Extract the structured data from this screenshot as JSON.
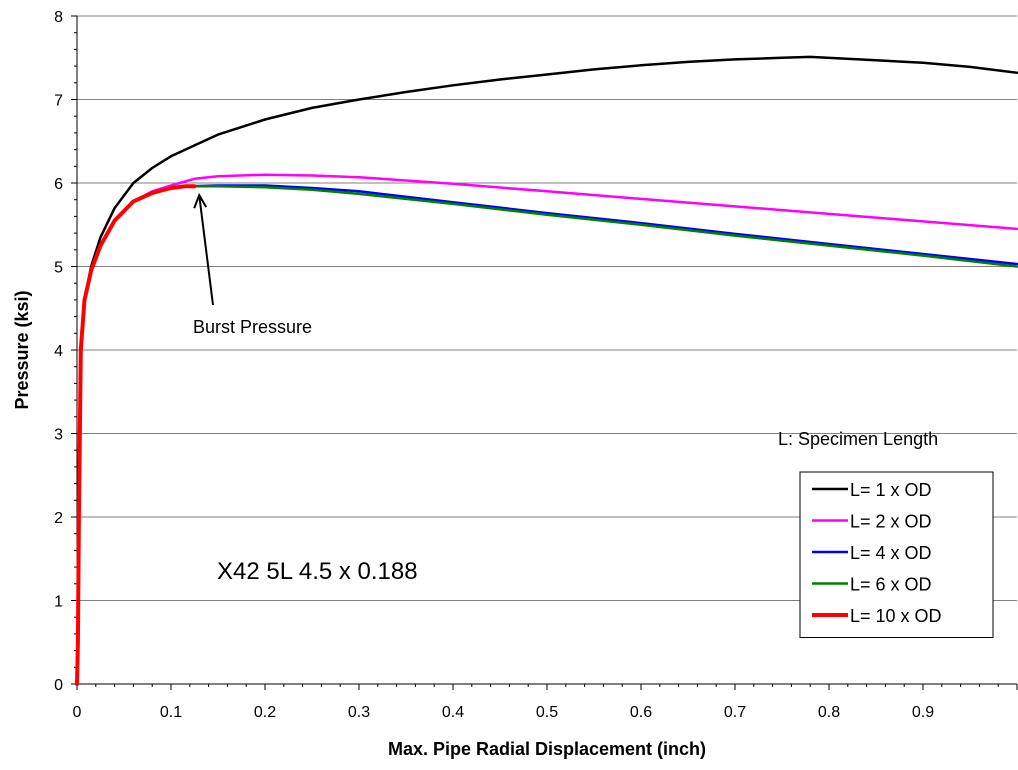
{
  "chart_data": {
    "type": "line",
    "xlabel": "Max. Pipe Radial Displacement (inch)",
    "ylabel": "Pressure (ksi)",
    "xlim": [
      0,
      1.0
    ],
    "ylim": [
      0,
      8
    ],
    "x_ticks": [
      "0",
      "0.1",
      "0.2",
      "0.3",
      "0.4",
      "0.5",
      "0.6",
      "0.7",
      "0.8",
      "0.9"
    ],
    "y_ticks": [
      "0",
      "1",
      "2",
      "3",
      "4",
      "5",
      "6",
      "7",
      "8"
    ],
    "grid": "horizontal",
    "legend_position": "bottom-right",
    "legend_title": "L: Specimen Length",
    "annotations": {
      "burst_pressure": {
        "text": "Burst Pressure",
        "points_to": [
          0.13,
          5.95
        ]
      },
      "specimen": {
        "text": "X42 5L 4.5 x 0.188"
      }
    },
    "series": [
      {
        "name": "L= 1 x OD",
        "color": "#000000",
        "x": [
          0,
          0.001,
          0.002,
          0.004,
          0.008,
          0.015,
          0.025,
          0.04,
          0.06,
          0.08,
          0.1,
          0.125,
          0.15,
          0.2,
          0.25,
          0.3,
          0.35,
          0.4,
          0.45,
          0.5,
          0.55,
          0.6,
          0.65,
          0.7,
          0.75,
          0.78,
          0.85,
          0.9,
          0.95,
          1.0
        ],
        "y": [
          0,
          0.5,
          2.0,
          4.0,
          4.6,
          5.0,
          5.35,
          5.7,
          6.0,
          6.18,
          6.32,
          6.45,
          6.58,
          6.76,
          6.9,
          7.0,
          7.09,
          7.17,
          7.24,
          7.3,
          7.36,
          7.41,
          7.45,
          7.48,
          7.5,
          7.51,
          7.47,
          7.44,
          7.39,
          7.32
        ]
      },
      {
        "name": "L= 2 x OD",
        "color": "#ff00ff",
        "x": [
          0,
          0.001,
          0.002,
          0.004,
          0.008,
          0.015,
          0.025,
          0.04,
          0.06,
          0.08,
          0.1,
          0.125,
          0.15,
          0.2,
          0.25,
          0.3,
          0.35,
          0.4,
          0.5,
          0.6,
          0.7,
          0.8,
          0.9,
          1.0
        ],
        "y": [
          0,
          0.5,
          2.0,
          4.0,
          4.6,
          4.95,
          5.25,
          5.55,
          5.78,
          5.9,
          5.97,
          6.05,
          6.08,
          6.1,
          6.09,
          6.07,
          6.03,
          5.99,
          5.9,
          5.81,
          5.72,
          5.63,
          5.54,
          5.45
        ]
      },
      {
        "name": "L= 4 x OD",
        "color": "#0000ff",
        "x": [
          0,
          0.001,
          0.002,
          0.004,
          0.008,
          0.015,
          0.025,
          0.04,
          0.06,
          0.08,
          0.1,
          0.12,
          0.15,
          0.2,
          0.25,
          0.3,
          0.4,
          0.5,
          0.6,
          0.7,
          0.8,
          0.9,
          1.0
        ],
        "y": [
          0,
          0.5,
          2.0,
          4.0,
          4.6,
          4.95,
          5.25,
          5.55,
          5.78,
          5.88,
          5.94,
          5.96,
          5.97,
          5.97,
          5.94,
          5.9,
          5.77,
          5.64,
          5.52,
          5.39,
          5.27,
          5.15,
          5.03
        ]
      },
      {
        "name": "L= 6 x OD",
        "color": "#008000",
        "x": [
          0,
          0.001,
          0.002,
          0.004,
          0.008,
          0.015,
          0.025,
          0.04,
          0.06,
          0.08,
          0.1,
          0.12,
          0.15,
          0.2,
          0.25,
          0.3,
          0.4,
          0.5,
          0.6,
          0.7,
          0.8,
          0.9,
          1.0
        ],
        "y": [
          0,
          0.5,
          2.0,
          4.0,
          4.6,
          4.95,
          5.25,
          5.55,
          5.78,
          5.88,
          5.94,
          5.96,
          5.96,
          5.95,
          5.92,
          5.87,
          5.75,
          5.62,
          5.5,
          5.37,
          5.25,
          5.13,
          5.0
        ]
      },
      {
        "name": "L= 10 x OD",
        "color": "#ff0000",
        "x": [
          0,
          0.001,
          0.002,
          0.004,
          0.008,
          0.015,
          0.025,
          0.04,
          0.06,
          0.08,
          0.1,
          0.115,
          0.125
        ],
        "y": [
          0,
          0.5,
          2.0,
          4.0,
          4.6,
          4.95,
          5.25,
          5.55,
          5.78,
          5.88,
          5.94,
          5.96,
          5.96
        ]
      }
    ]
  }
}
